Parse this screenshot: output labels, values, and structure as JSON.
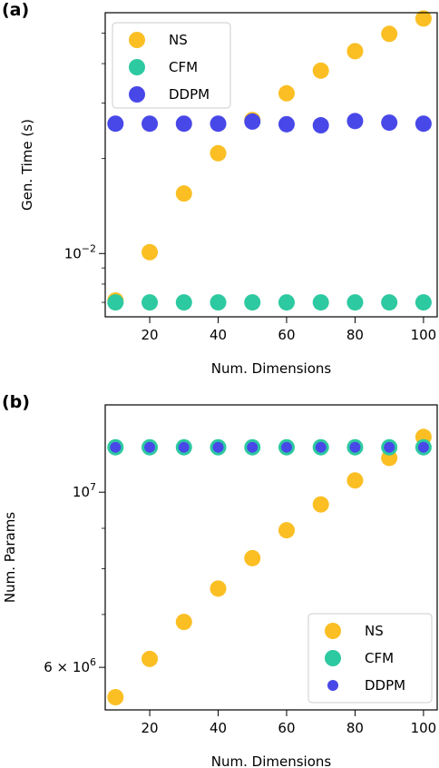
{
  "chart_data": [
    {
      "panel_label": "(a)",
      "type": "scatter",
      "xlabel": "Num. Dimensions",
      "ylabel": "Gen. Time (s)",
      "yscale": "log",
      "xlim": [
        7,
        104
      ],
      "ylim": [
        0.0063,
        0.058
      ],
      "x_ticks": [
        20,
        40,
        60,
        80,
        100
      ],
      "y_ticks": [
        {
          "value": 0.01,
          "label": "10",
          "exp": "−2"
        }
      ],
      "legend_position": "top-left",
      "x": [
        10,
        20,
        30,
        40,
        50,
        60,
        70,
        80,
        90,
        100
      ],
      "series": [
        {
          "name": "NS",
          "color": "#fbbf24",
          "size": 9,
          "values": [
            0.0071,
            0.0101,
            0.0155,
            0.0208,
            0.0265,
            0.0322,
            0.038,
            0.0438,
            0.0497,
            0.0556
          ]
        },
        {
          "name": "CFM",
          "color": "#2dc9a0",
          "size": 9,
          "values": [
            0.007,
            0.007,
            0.007,
            0.007,
            0.007,
            0.007,
            0.007,
            0.007,
            0.007,
            0.007
          ]
        },
        {
          "name": "DDPM",
          "color": "#4848e8",
          "size": 9,
          "values": [
            0.0258,
            0.0258,
            0.0258,
            0.0258,
            0.0262,
            0.0257,
            0.0255,
            0.0263,
            0.026,
            0.0258
          ]
        }
      ]
    },
    {
      "panel_label": "(b)",
      "type": "scatter",
      "xlabel": "Num. Dimensions",
      "ylabel": "Num. Params",
      "yscale": "log",
      "xlim": [
        7,
        104
      ],
      "ylim": [
        5300000,
        12900000
      ],
      "x_ticks": [
        20,
        40,
        60,
        80,
        100
      ],
      "y_ticks": [
        {
          "value": 10000000,
          "label": "10",
          "exp": "7"
        },
        {
          "value": 6000000,
          "label": "6 × 10",
          "exp": "6"
        }
      ],
      "legend_position": "bottom-right",
      "x": [
        10,
        20,
        30,
        40,
        50,
        60,
        70,
        80,
        90,
        100
      ],
      "series": [
        {
          "name": "NS",
          "color": "#fbbf24",
          "size": 9,
          "values": [
            5500000,
            6150000,
            6850000,
            7550000,
            8250000,
            8950000,
            9650000,
            10350000,
            11050000,
            11750000
          ]
        },
        {
          "name": "CFM",
          "color": "#2dc9a0",
          "size": 9,
          "values": [
            11400000,
            11400000,
            11400000,
            11400000,
            11400000,
            11400000,
            11400000,
            11400000,
            11400000,
            11400000
          ]
        },
        {
          "name": "DDPM",
          "color": "#4848e8",
          "size": 6,
          "values": [
            11400000,
            11400000,
            11400000,
            11400000,
            11400000,
            11400000,
            11400000,
            11400000,
            11400000,
            11400000
          ]
        }
      ]
    }
  ]
}
